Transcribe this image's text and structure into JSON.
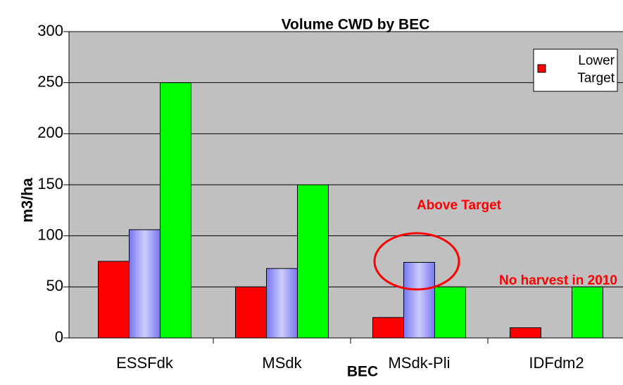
{
  "chart_data": {
    "type": "bar",
    "title": "Volume CWD by BEC",
    "x_label": "BEC",
    "y_label": "m3/ha",
    "categories": [
      "ESSFdk",
      "MSdk",
      "MSdk-Pli",
      "IDFdm2"
    ],
    "series": [
      {
        "name": "Lower Target",
        "color": "#ff0000",
        "values": [
          75,
          50,
          20,
          10
        ]
      },
      {
        "color": "#9999ff",
        "values": [
          106,
          68,
          74,
          null
        ]
      },
      {
        "color": "#00ff00",
        "values": [
          250,
          150,
          50,
          50
        ]
      }
    ],
    "ylim": [
      0,
      300
    ],
    "yticks": [
      0,
      50,
      100,
      150,
      200,
      250,
      300
    ],
    "grid": true,
    "legend": "upper right",
    "annotations": [
      "Above Target",
      "No harvest in 2010"
    ]
  }
}
